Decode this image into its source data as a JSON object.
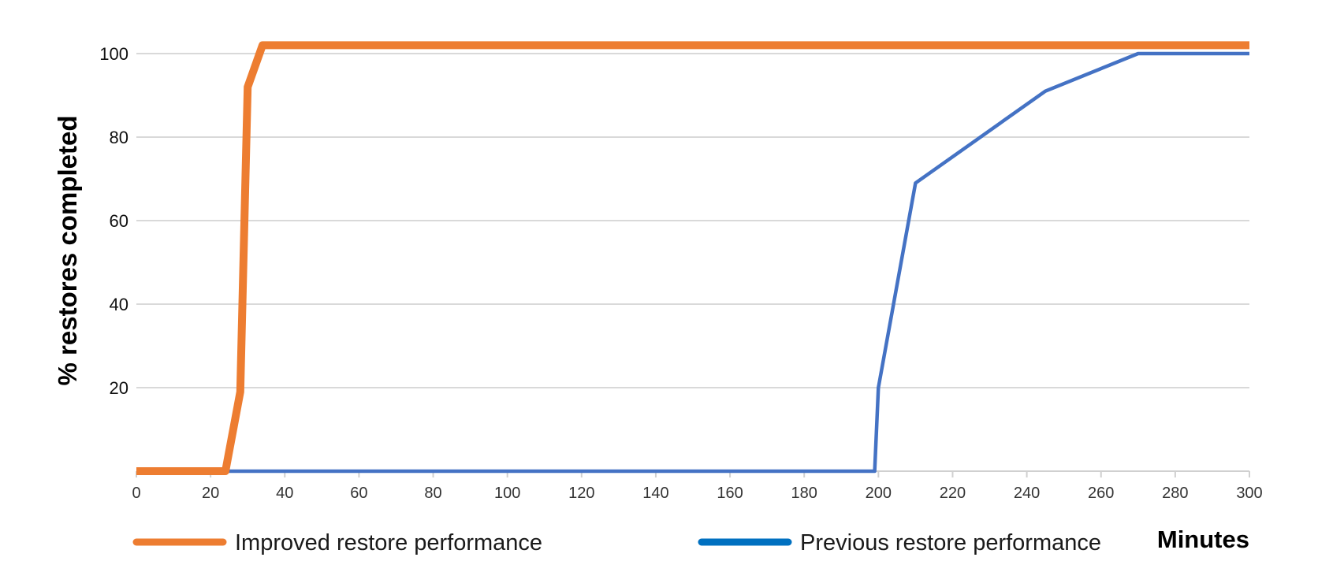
{
  "chart_data": {
    "type": "line",
    "title": "",
    "xlabel": "Minutes",
    "ylabel": "% restores completed",
    "xlim": [
      0,
      300
    ],
    "ylim": [
      0,
      100
    ],
    "x_ticks": [
      0,
      20,
      40,
      60,
      80,
      100,
      120,
      140,
      160,
      180,
      200,
      220,
      240,
      260,
      280,
      300
    ],
    "y_ticks": [
      20,
      40,
      60,
      80,
      100
    ],
    "grid": true,
    "legend_position": "bottom",
    "series": [
      {
        "name": "Improved restore performance",
        "color": "#ED7D31",
        "points": [
          [
            0,
            0
          ],
          [
            24,
            0
          ],
          [
            28,
            19
          ],
          [
            30,
            92
          ],
          [
            34,
            102
          ],
          [
            300,
            102
          ]
        ]
      },
      {
        "name": "Previous restore performance",
        "color": "#4472C4",
        "legend_color": "#0070C0",
        "points": [
          [
            0,
            0
          ],
          [
            199,
            0
          ],
          [
            200,
            20
          ],
          [
            210,
            69
          ],
          [
            245,
            91
          ],
          [
            270,
            100
          ],
          [
            300,
            100
          ]
        ]
      }
    ]
  }
}
